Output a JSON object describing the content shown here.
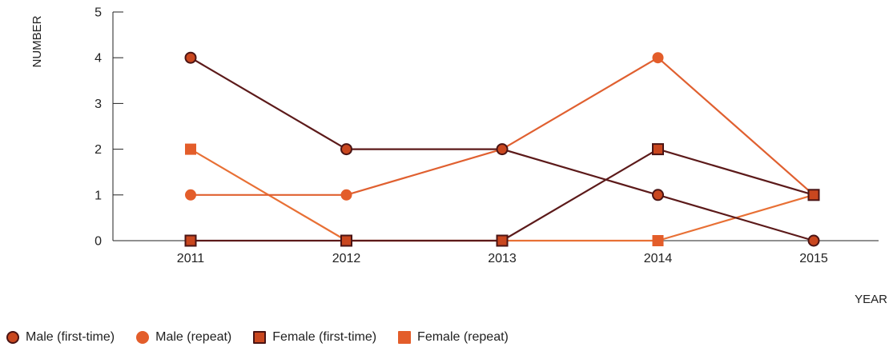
{
  "chart_data": {
    "type": "line",
    "title": "",
    "xlabel": "YEAR",
    "ylabel": "NUMBER",
    "categories": [
      "2011",
      "2012",
      "2013",
      "2014",
      "2015"
    ],
    "ylim": [
      0,
      5
    ],
    "yticks": [
      "0",
      "1",
      "2",
      "3",
      "4",
      "5"
    ],
    "grid": false,
    "legend_position": "bottom-left",
    "series": [
      {
        "name": "Male (first-time)",
        "values": [
          4,
          2,
          2,
          1,
          0
        ],
        "marker": "circle",
        "outlined": true,
        "line_color": "#5c1a1a",
        "marker_color": "#c9471f"
      },
      {
        "name": "Male (repeat)",
        "values": [
          1,
          1,
          2,
          4,
          1
        ],
        "marker": "circle",
        "outlined": false,
        "line_color": "#e06030",
        "marker_color": "#e35d2a"
      },
      {
        "name": "Female (first-time)",
        "values": [
          0,
          0,
          0,
          2,
          1
        ],
        "marker": "square",
        "outlined": true,
        "line_color": "#5c1a1a",
        "marker_color": "#c9471f"
      },
      {
        "name": "Female (repeat)",
        "values": [
          2,
          0,
          0,
          0,
          1
        ],
        "marker": "square",
        "outlined": false,
        "line_color": "#e87035",
        "marker_color": "#e35d2a"
      }
    ]
  },
  "colors": {
    "axis": "#222222",
    "outline": "#4a1414"
  }
}
